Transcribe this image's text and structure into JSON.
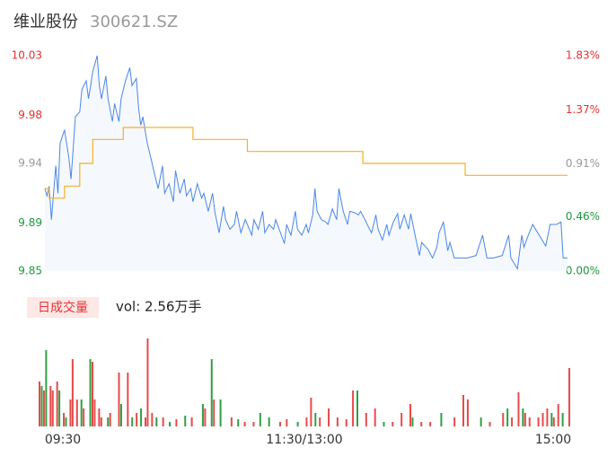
{
  "header": {
    "title": "维业股份",
    "code": "300621.SZ"
  },
  "chart_data": [
    {
      "type": "line",
      "x": [
        0,
        1,
        2,
        3,
        5,
        6,
        7,
        9,
        11,
        12,
        14,
        16,
        17,
        19,
        20,
        21,
        22,
        24,
        25,
        26,
        28,
        29,
        31,
        32,
        34,
        35,
        37,
        39,
        40,
        42,
        43,
        44,
        45,
        47,
        49,
        50,
        52,
        54,
        55,
        57,
        59,
        60,
        62,
        64,
        65,
        67,
        68,
        70,
        72,
        73,
        75,
        77,
        78,
        80,
        82,
        83,
        85,
        87,
        88,
        90,
        92,
        93,
        95,
        96,
        98,
        100,
        101,
        103,
        105,
        106,
        108,
        110,
        111,
        113,
        115,
        116,
        118,
        120,
        121,
        123,
        124,
        125,
        127,
        129,
        130,
        132,
        134,
        135,
        137,
        139,
        140,
        142,
        144,
        145,
        147,
        148,
        150,
        152,
        153,
        155,
        157,
        158,
        160,
        162,
        163,
        165,
        167,
        168,
        170,
        172,
        173,
        175,
        176,
        178,
        180,
        181,
        183,
        185,
        186,
        188,
        194,
        198,
        201,
        203,
        206,
        210,
        213,
        214,
        217,
        219,
        220,
        222,
        224,
        227,
        230,
        232,
        235,
        237,
        238,
        240
      ],
      "series": [
        {
          "color": "#4a86e8",
          "values": [
            9.919,
            9.913,
            9.921,
            9.893,
            9.938,
            9.915,
            9.957,
            9.968,
            9.945,
            9.927,
            9.979,
            9.983,
            10.002,
            10.009,
            9.994,
            10.005,
            10.017,
            10.03,
            10.005,
            9.994,
            10.013,
            9.994,
            9.975,
            9.99,
            9.975,
            9.994,
            10.009,
            10.02,
            10.005,
            10.011,
            9.987,
            9.972,
            9.979,
            9.957,
            9.942,
            9.934,
            9.919,
            9.938,
            9.915,
            9.923,
            9.908,
            9.934,
            9.915,
            9.927,
            9.913,
            9.919,
            9.908,
            9.923,
            9.911,
            9.915,
            9.9,
            9.915,
            9.9,
            9.882,
            9.904,
            9.893,
            9.885,
            9.889,
            9.9,
            9.882,
            9.893,
            9.889,
            9.88,
            9.893,
            9.885,
            9.9,
            9.882,
            9.889,
            9.885,
            9.893,
            9.883,
            9.873,
            9.889,
            9.88,
            9.9,
            9.885,
            9.88,
            9.889,
            9.882,
            9.897,
            9.919,
            9.9,
            9.893,
            9.891,
            9.889,
            9.902,
            9.893,
            9.919,
            9.9,
            9.889,
            9.9,
            9.899,
            9.897,
            9.9,
            9.893,
            9.889,
            9.882,
            9.897,
            9.885,
            9.876,
            9.889,
            9.88,
            9.891,
            9.898,
            9.885,
            9.897,
            9.885,
            9.898,
            9.88,
            9.863,
            9.874,
            9.87,
            9.868,
            9.861,
            9.87,
            9.882,
            9.891,
            9.867,
            9.874,
            9.861,
            9.861,
            9.863,
            9.88,
            9.861,
            9.861,
            9.863,
            9.88,
            9.861,
            9.852,
            9.88,
            9.87,
            9.88,
            9.889,
            9.88,
            9.871,
            9.889,
            9.889,
            9.891,
            9.861,
            9.861
          ]
        }
      ],
      "avg_x": [
        0,
        2,
        2,
        9,
        9,
        16,
        16,
        22,
        22,
        36,
        36,
        68,
        68,
        93,
        93,
        146,
        146,
        193,
        193,
        240
      ],
      "avg_series": {
        "color": "#f5b025",
        "values": [
          9.919,
          9.919,
          9.911,
          9.911,
          9.921,
          9.921,
          9.94,
          9.94,
          9.96,
          9.96,
          9.97,
          9.97,
          9.96,
          9.96,
          9.95,
          9.95,
          9.94,
          9.94,
          9.93,
          9.93
        ]
      },
      "xlim": [
        0,
        240
      ],
      "ylim": [
        9.85,
        10.03
      ],
      "yticks": [
        9.85,
        9.89,
        9.94,
        9.98,
        10.03
      ],
      "ytick_colors": [
        "#1a9a3a",
        "#1a9a3a",
        "#999999",
        "#e83030",
        "#e83030"
      ],
      "y2lim": [
        0,
        1.83
      ],
      "y2ticks": [
        {
          "value": 0,
          "label": "0.00%"
        },
        {
          "value": 0.46,
          "label": "0.46%"
        },
        {
          "value": 0.91,
          "label": "0.91%"
        },
        {
          "value": 1.37,
          "label": "1.37%"
        },
        {
          "value": 1.83,
          "label": "1.83%"
        }
      ],
      "y2tick_colors": [
        "#1a9a3a",
        "#1a9a3a",
        "#999999",
        "#e83030",
        "#e83030"
      ]
    },
    {
      "type": "bar",
      "label": "日成交量",
      "annotation": "vol: 2.56万手",
      "xlim": [
        0,
        240
      ],
      "xticks": [
        {
          "value": 0,
          "label": "09:30"
        },
        {
          "value": 120,
          "label": "11:30/13:00"
        },
        {
          "value": 240,
          "label": "15:00"
        }
      ],
      "series": [
        {
          "color": "#e84a4a",
          "x": [
            0,
            2,
            5,
            6,
            8,
            11,
            14,
            15,
            17,
            20,
            24,
            25,
            27,
            28,
            32,
            36,
            40,
            44,
            48,
            49,
            51,
            56,
            62,
            69,
            75,
            79,
            87,
            93,
            97,
            109,
            112,
            121,
            123,
            127,
            131,
            135,
            139,
            142,
            148,
            152,
            160,
            164,
            168,
            173,
            177,
            188,
            192,
            194,
            204,
            210,
            214,
            217,
            220,
            222,
            226,
            228,
            230,
            233,
            235,
            240
          ],
          "values": [
            50,
            40,
            45,
            40,
            50,
            15,
            30,
            75,
            30,
            20,
            72,
            30,
            20,
            10,
            15,
            60,
            60,
            15,
            10,
            98,
            15,
            10,
            8,
            10,
            20,
            30,
            10,
            5,
            5,
            5,
            8,
            10,
            32,
            10,
            20,
            10,
            8,
            40,
            15,
            20,
            5,
            15,
            25,
            5,
            5,
            10,
            35,
            30,
            5,
            15,
            10,
            38,
            15,
            10,
            10,
            15,
            20,
            10,
            25,
            65
          ]
        },
        {
          "color": "#2ea043",
          "x": [
            1,
            3,
            9,
            12,
            19,
            23,
            31,
            37,
            42,
            46,
            53,
            59,
            66,
            74,
            78,
            82,
            90,
            100,
            104,
            117,
            125,
            144,
            156,
            169,
            182,
            200,
            212,
            219,
            232,
            237
          ],
          "values": [
            45,
            85,
            40,
            10,
            30,
            75,
            10,
            25,
            10,
            20,
            10,
            5,
            12,
            25,
            75,
            30,
            8,
            15,
            10,
            5,
            15,
            40,
            5,
            10,
            15,
            10,
            20,
            20,
            15,
            15
          ]
        }
      ]
    }
  ]
}
